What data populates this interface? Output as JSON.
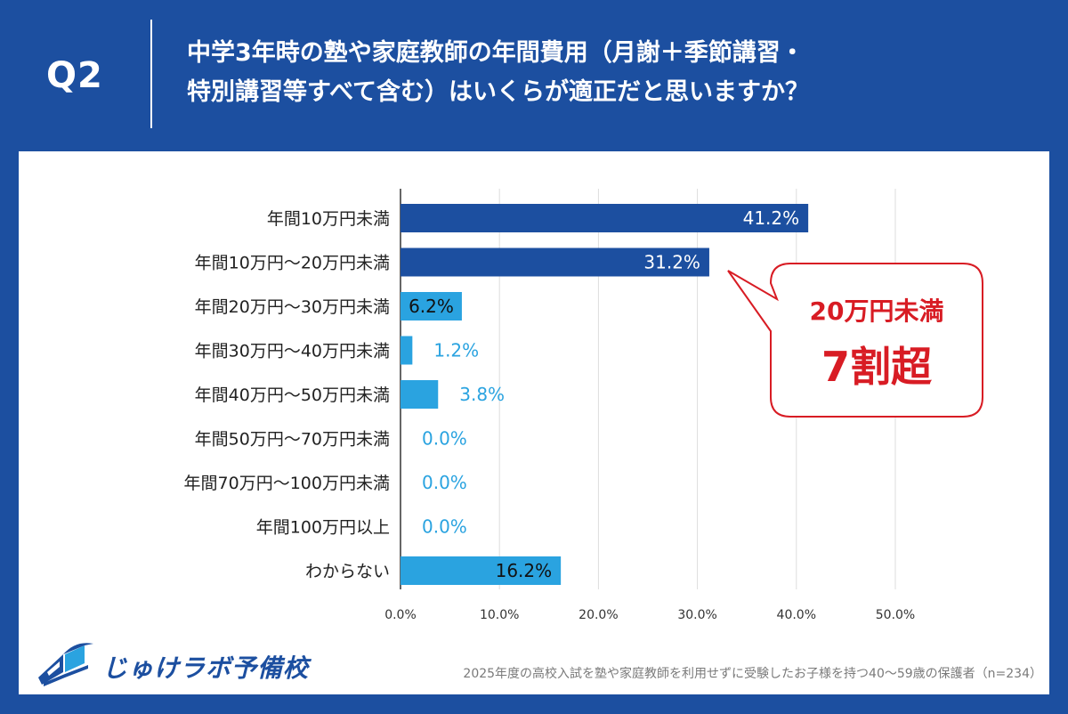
{
  "header": {
    "q_label": "Q2",
    "title_line1": "中学3年時の塾や家庭教師の年間費用（月謝＋季節講習・",
    "title_line2": "特別講習等すべて含む）はいくらが適正だと思いますか？"
  },
  "chart_data": {
    "type": "bar",
    "orientation": "horizontal",
    "categories": [
      "年間10万円未満",
      "年間10万円〜20万円未満",
      "年間20万円〜30万円未満",
      "年間30万円〜40万円未満",
      "年間40万円〜50万円未満",
      "年間50万円〜70万円未満",
      "年間70万円〜100万円未満",
      "年間100万円以上",
      "わからない"
    ],
    "values": [
      41.2,
      31.2,
      6.2,
      1.2,
      3.8,
      0.0,
      0.0,
      0.0,
      16.2
    ],
    "value_labels": [
      "41.2%",
      "31.2%",
      "6.2%",
      "1.2%",
      "3.8%",
      "0.0%",
      "0.0%",
      "0.0%",
      "16.2%"
    ],
    "bar_colors": [
      "#1c4fa0",
      "#1c4fa0",
      "#2aa3e0",
      "#2aa3e0",
      "#2aa3e0",
      "#2aa3e0",
      "#2aa3e0",
      "#2aa3e0",
      "#2aa3e0"
    ],
    "xlim": [
      0,
      50
    ],
    "xticks": [
      "0.0%",
      "10.0%",
      "20.0%",
      "30.0%",
      "40.0%",
      "50.0%"
    ],
    "grid": true,
    "xlabel": "",
    "ylabel": ""
  },
  "callout": {
    "line1": "20万円未満",
    "line2": "7割超",
    "color": "#d81c24"
  },
  "brand": {
    "name": "じゅけラボ予備校",
    "icon": "book-logo-icon"
  },
  "footnote": "2025年度の高校入試を塾や家庭教師を利用せずに受験したお子様を持つ40〜59歳の保護者（n=234）",
  "colors": {
    "brand_blue": "#1c4fa0",
    "light_blue": "#2aa3e0",
    "accent_red": "#d81c24"
  }
}
